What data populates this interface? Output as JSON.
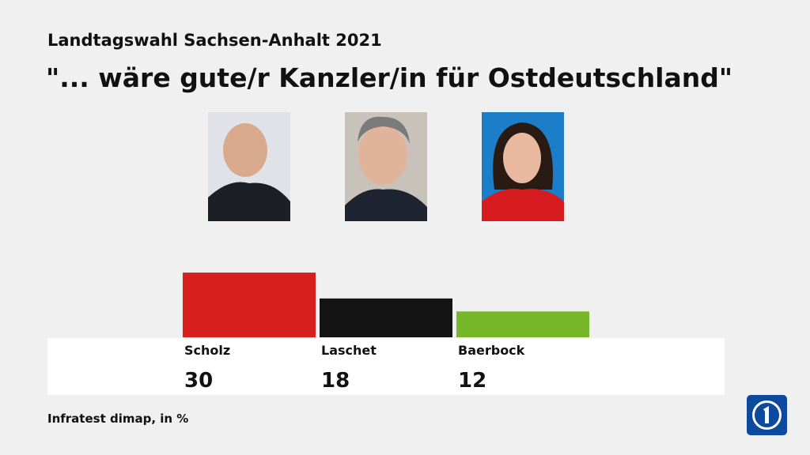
{
  "chart_data": {
    "type": "bar",
    "subtitle": "Landtagswahl Sachsen-Anhalt 2021",
    "title": "\"... wäre gute/r Kanzler/in für Ostdeutschland\"",
    "categories": [
      "Scholz",
      "Laschet",
      "Baerbock"
    ],
    "values": [
      30,
      18,
      12
    ],
    "colors": [
      "#d71f1d",
      "#131313",
      "#77b82a"
    ],
    "source": "Infratest dimap, in %"
  }
}
